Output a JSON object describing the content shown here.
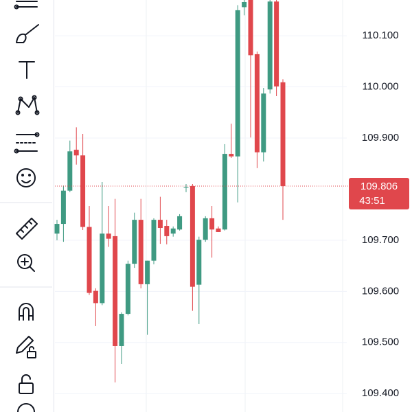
{
  "chart_data": {
    "type": "candlestick",
    "open": [
      109.713,
      109.732,
      109.797,
      109.877,
      109.866,
      109.726,
      109.601,
      109.577,
      109.713,
      109.708,
      109.493,
      109.556,
      109.654,
      109.74,
      109.614,
      109.66,
      109.74,
      109.728,
      109.713,
      109.721,
      109.803,
      109.806,
      109.613,
      109.701,
      109.743,
      109.723,
      109.721,
      109.869,
      109.864,
      110.156,
      110.17,
      110.064,
      109.872,
      109.995,
      110.167,
      110.009
    ],
    "high": [
      109.74,
      109.807,
      109.895,
      109.921,
      109.908,
      109.767,
      109.606,
      109.814,
      109.767,
      109.781,
      109.559,
      109.66,
      109.754,
      109.781,
      109.66,
      109.743,
      109.785,
      109.74,
      109.727,
      109.751,
      109.81,
      109.81,
      109.707,
      109.747,
      109.767,
      109.727,
      109.888,
      109.928,
      110.16,
      110.18,
      110.18,
      110.069,
      109.998,
      110.18,
      110.18,
      110.015
    ],
    "low": [
      109.7,
      109.697,
      109.794,
      109.848,
      109.72,
      109.593,
      109.532,
      109.573,
      109.687,
      109.422,
      109.458,
      109.553,
      109.646,
      109.606,
      109.515,
      109.653,
      109.693,
      109.692,
      109.707,
      109.719,
      109.794,
      109.562,
      109.536,
      109.697,
      109.666,
      109.716,
      109.719,
      109.861,
      109.774,
      110.14,
      109.901,
      109.841,
      109.854,
      109.987,
      109.982,
      109.74
    ],
    "close": [
      109.732,
      109.797,
      109.874,
      109.866,
      109.726,
      109.597,
      109.577,
      109.713,
      109.703,
      109.493,
      109.556,
      109.654,
      109.74,
      109.614,
      109.66,
      109.74,
      109.724,
      109.708,
      109.723,
      109.747,
      109.804,
      109.609,
      109.701,
      109.743,
      109.721,
      109.716,
      109.869,
      109.864,
      110.15,
      110.166,
      110.062,
      109.872,
      109.987,
      110.167,
      110.001,
      109.806
    ],
    "up_color": "#3f9a82",
    "down_color": "#e0474c",
    "ylim": [
      109.364,
      110.17
    ],
    "yticks": [
      {
        "value": 109.4,
        "label": "109.400"
      },
      {
        "value": 109.5,
        "label": "109.500"
      },
      {
        "value": 109.6,
        "label": "109.600"
      },
      {
        "value": 109.7,
        "label": "109.700"
      },
      {
        "value": 109.9,
        "label": "109.900"
      },
      {
        "value": 110.0,
        "label": "110.000"
      },
      {
        "value": 110.1,
        "label": "110.100"
      }
    ],
    "grid": true,
    "current_price": 109.806,
    "countdown": "43:51"
  }
}
